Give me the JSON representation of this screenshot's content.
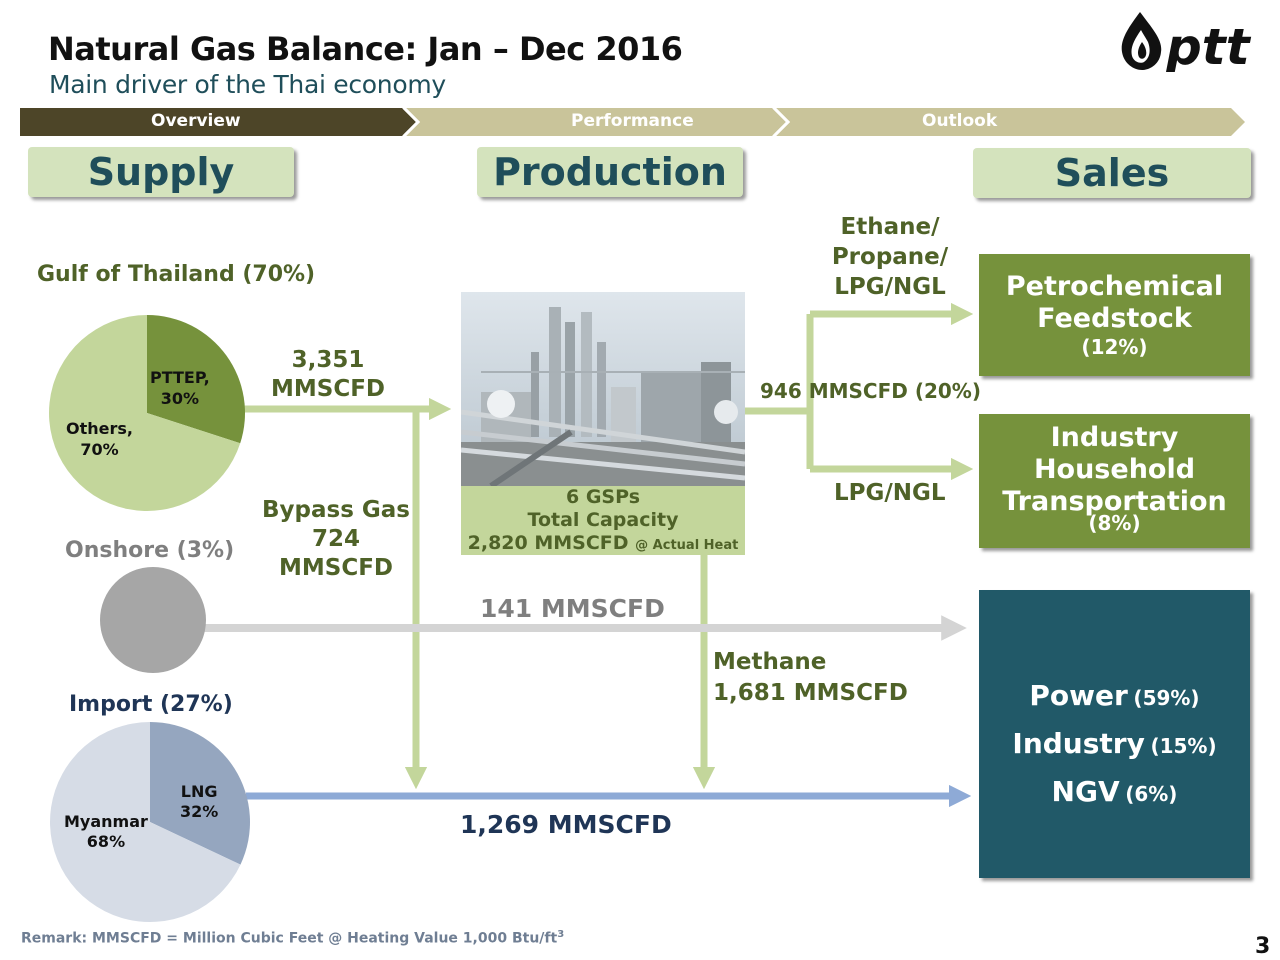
{
  "header": {
    "title": "Natural Gas Balance: Jan – Dec 2016",
    "subtitle": "Main driver of the Thai economy",
    "logo_text": "ptt"
  },
  "nav": {
    "steps": [
      {
        "label": "Overview",
        "active": true
      },
      {
        "label": "Performance",
        "active": false
      },
      {
        "label": "Outlook",
        "active": false
      }
    ]
  },
  "columns": {
    "supply": "Supply",
    "production": "Production",
    "sales": "Sales"
  },
  "supply": {
    "gulf": {
      "label": "Gulf of Thailand (70%)",
      "pie": [
        {
          "label": "PTTEP,",
          "value_label": "30%",
          "value": 30
        },
        {
          "label": "Others,",
          "value_label": "70%",
          "value": 70
        }
      ],
      "flow_value": "3,351",
      "flow_unit": "MMSCFD"
    },
    "onshore": {
      "label": "Onshore (3%)"
    },
    "import": {
      "label": "Import (27%)",
      "pie": [
        {
          "label": "LNG",
          "value_label": "32%",
          "value": 32
        },
        {
          "label": "Myanmar",
          "value_label": "68%",
          "value": 68
        }
      ]
    },
    "bypass": {
      "label": "Bypass Gas",
      "value": "724",
      "unit": "MMSCFD"
    }
  },
  "production": {
    "gsp_line1": "6 GSPs",
    "gsp_line2": "Total Capacity",
    "gsp_capacity": "2,820 MMSCFD",
    "gsp_note": "@ Actual Heat"
  },
  "flows": {
    "ethane_line1": "Ethane/",
    "ethane_line2": "Propane/",
    "ethane_line3": "LPG/NGL",
    "gsp_output": "946 MMSCFD (20%)",
    "lpg_ngl": "LPG/NGL",
    "onshore_flow": "141 MMSCFD",
    "methane_label": "Methane",
    "methane_value": "1,681 MMSCFD",
    "import_flow": "1,269 MMSCFD"
  },
  "sales": {
    "petro": {
      "line1": "Petrochemical",
      "line2": "Feedstock",
      "pct": "(12%)"
    },
    "ihh": {
      "line1": "Industry",
      "line2": "Household",
      "line3": "Transportation",
      "pct": "(8%)"
    },
    "power": {
      "items": [
        {
          "label": "Power",
          "pct": "(59%)"
        },
        {
          "label": "Industry",
          "pct": "(15%)"
        },
        {
          "label": "NGV",
          "pct": "(6%)"
        }
      ]
    }
  },
  "footer": {
    "remark": "Remark:  MMSCFD = Million Cubic Feet @ Heating Value 1,000 Btu/ft",
    "remark_sup": "3",
    "page_number": "3"
  },
  "colors": {
    "nav_active": "#4d4528",
    "nav_inactive": "#c9c49a",
    "header_box": "#d4e3bd",
    "title_teal": "#1f4e5a",
    "text_green": "#4f6228",
    "arrow_green": "#c3d69b",
    "arrow_grey": "#d4d4d4",
    "arrow_blue": "#8eaad6",
    "box_green": "#76923c",
    "box_teal": "#215968",
    "pie_gulf_main": "#c3d69b",
    "pie_gulf_slice": "#76923c",
    "pie_import_main": "#d6dce6",
    "pie_import_slice": "#95a6bf",
    "onshore_circle": "#a6a6a6"
  },
  "icons": {
    "logo": "ptt-flame-icon",
    "plant": "gas-plant-image"
  }
}
